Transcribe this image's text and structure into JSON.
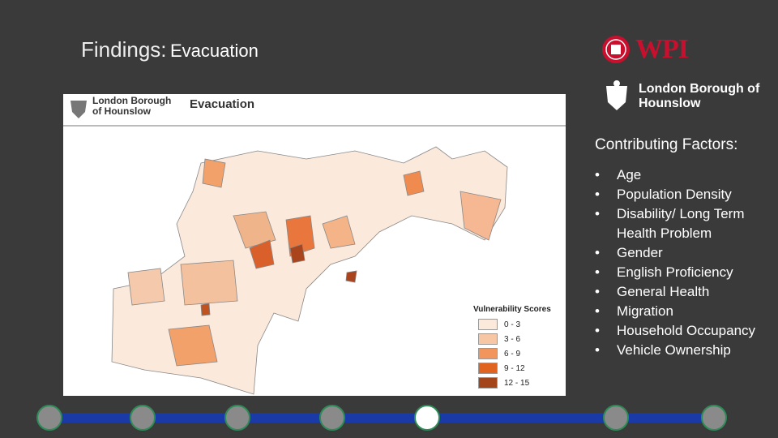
{
  "title": {
    "prefix": "Findings:",
    "topic": "Evacuation"
  },
  "logos": {
    "wpi": "WPI",
    "council": "London Borough of Hounslow"
  },
  "map": {
    "header_org": "London Borough of Hounslow",
    "header_title": "Evacuation",
    "legend": {
      "title": "Vulnerability Scores",
      "items": [
        "0 - 3",
        "3 - 6",
        "6 - 9",
        "9 - 12",
        "12 - 15"
      ]
    }
  },
  "factors": {
    "heading": "Contributing Factors:",
    "items": [
      "Age",
      "Population Density",
      "Disability/ Long Term Health Problem",
      "Gender",
      "English Proficiency",
      "General Health",
      "Migration",
      "Household Occupancy",
      "Vehicle Ownership"
    ]
  }
}
